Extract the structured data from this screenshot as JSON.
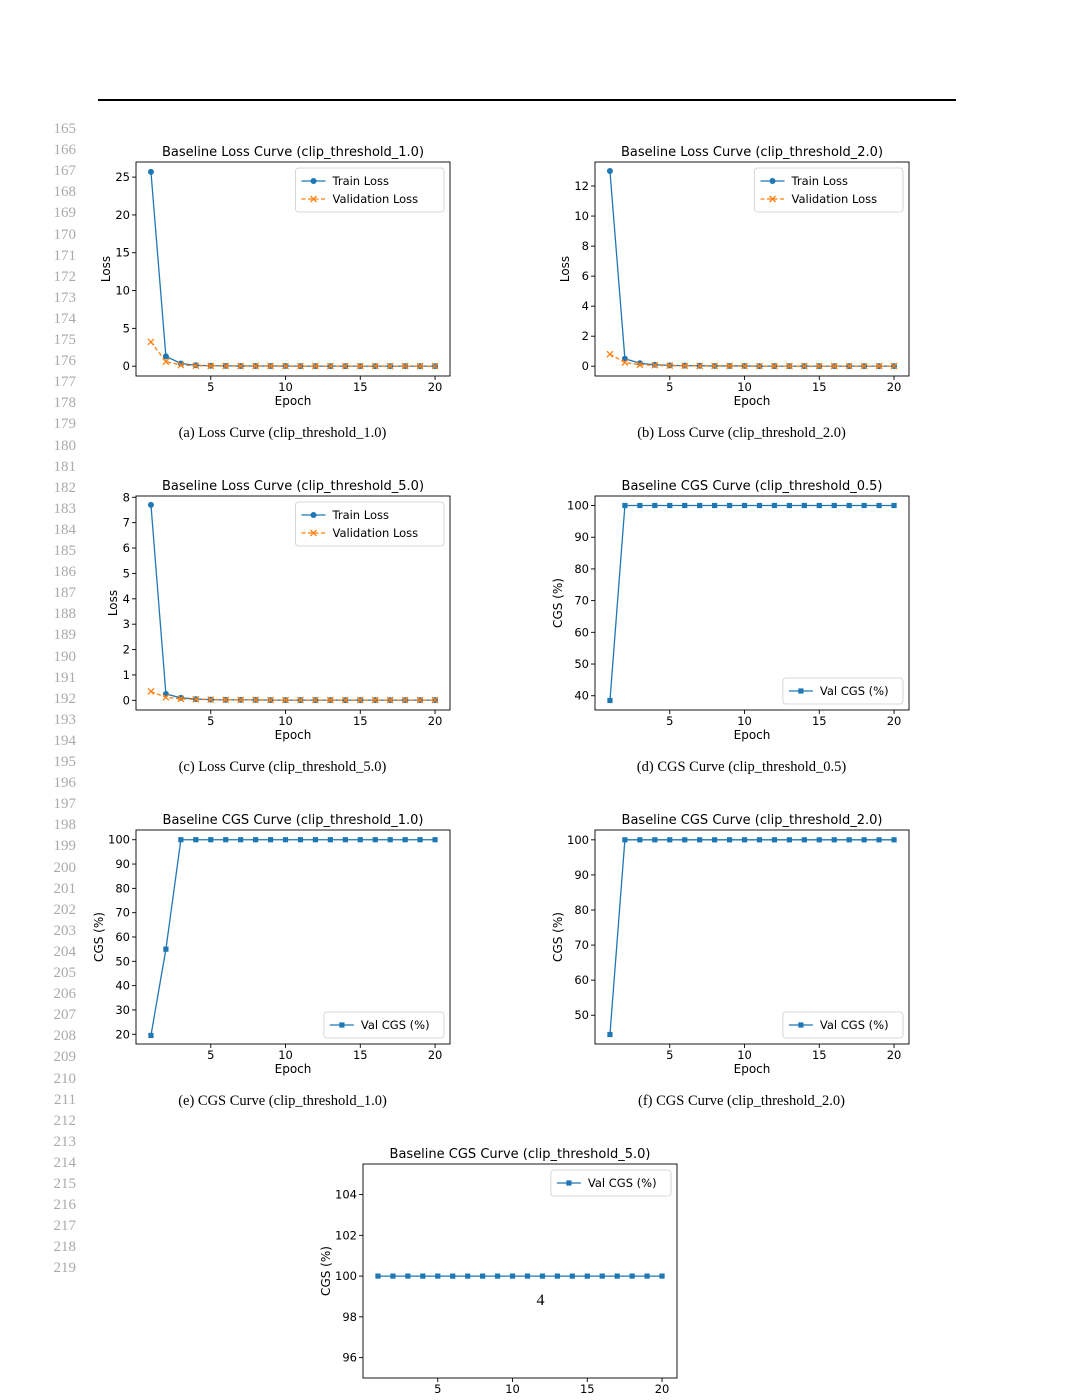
{
  "line_numbers": [
    "165",
    "166",
    "167",
    "168",
    "169",
    "170",
    "171",
    "172",
    "173",
    "174",
    "175",
    "176",
    "177",
    "178",
    "179",
    "180",
    "181",
    "182",
    "183",
    "184",
    "185",
    "186",
    "187",
    "188",
    "189",
    "190",
    "191",
    "192",
    "193",
    "194",
    "195",
    "196",
    "197",
    "198",
    "199",
    "200",
    "201",
    "202",
    "203",
    "204",
    "205",
    "206",
    "207",
    "208",
    "209",
    "210",
    "211",
    "212",
    "213",
    "214",
    "215",
    "216",
    "217",
    "218",
    "219"
  ],
  "page_number": "4",
  "chart_data": [
    {
      "type": "line",
      "title": "Baseline Loss Curve (clip_threshold_1.0)",
      "caption": "(a) Loss Curve (clip_threshold_1.0)",
      "xlabel": "Epoch",
      "ylabel": "Loss",
      "xlim": [
        0,
        21
      ],
      "ylim": [
        -1.3,
        27
      ],
      "xticks": [
        5,
        10,
        15,
        20
      ],
      "yticks": [
        0,
        5,
        10,
        15,
        20,
        25
      ],
      "legend": "top-right",
      "x": [
        1,
        2,
        3,
        4,
        5,
        6,
        7,
        8,
        9,
        10,
        11,
        12,
        13,
        14,
        15,
        16,
        17,
        18,
        19,
        20
      ],
      "series": [
        {
          "name": "Train Loss",
          "color": "#1f77b4",
          "marker": "circle",
          "style": "solid",
          "values": [
            25.7,
            1.3,
            0.35,
            0.12,
            0.06,
            0.04,
            0.03,
            0.02,
            0.02,
            0.02,
            0.01,
            0.01,
            0.01,
            0.01,
            0.01,
            0.01,
            0.01,
            0.01,
            0.01,
            0.01
          ]
        },
        {
          "name": "Validation Loss",
          "color": "#ff7f0e",
          "marker": "x",
          "style": "dashed",
          "values": [
            3.2,
            0.6,
            0.15,
            0.06,
            0.04,
            0.03,
            0.02,
            0.02,
            0.02,
            0.01,
            0.01,
            0.01,
            0.01,
            0.01,
            0.01,
            0.01,
            0.01,
            0.01,
            0.01,
            0.01
          ]
        }
      ]
    },
    {
      "type": "line",
      "title": "Baseline Loss Curve (clip_threshold_2.0)",
      "caption": "(b) Loss Curve (clip_threshold_2.0)",
      "xlabel": "Epoch",
      "ylabel": "Loss",
      "xlim": [
        0,
        21
      ],
      "ylim": [
        -0.65,
        13.6
      ],
      "xticks": [
        5,
        10,
        15,
        20
      ],
      "yticks": [
        0,
        2,
        4,
        6,
        8,
        10,
        12
      ],
      "legend": "top-right",
      "x": [
        1,
        2,
        3,
        4,
        5,
        6,
        7,
        8,
        9,
        10,
        11,
        12,
        13,
        14,
        15,
        16,
        17,
        18,
        19,
        20
      ],
      "series": [
        {
          "name": "Train Loss",
          "color": "#1f77b4",
          "marker": "circle",
          "style": "solid",
          "values": [
            13.0,
            0.5,
            0.2,
            0.1,
            0.06,
            0.04,
            0.03,
            0.02,
            0.02,
            0.02,
            0.01,
            0.01,
            0.01,
            0.01,
            0.01,
            0.01,
            0.01,
            0.01,
            0.01,
            0.01
          ]
        },
        {
          "name": "Validation Loss",
          "color": "#ff7f0e",
          "marker": "x",
          "style": "dashed",
          "values": [
            0.8,
            0.25,
            0.1,
            0.06,
            0.04,
            0.03,
            0.02,
            0.02,
            0.02,
            0.01,
            0.01,
            0.01,
            0.01,
            0.01,
            0.01,
            0.01,
            0.01,
            0.01,
            0.01,
            0.01
          ]
        }
      ]
    },
    {
      "type": "line",
      "title": "Baseline Loss Curve (clip_threshold_5.0)",
      "caption": "(c) Loss Curve (clip_threshold_5.0)",
      "xlabel": "Epoch",
      "ylabel": "Loss",
      "xlim": [
        0,
        21
      ],
      "ylim": [
        -0.38,
        8.05
      ],
      "xticks": [
        5,
        10,
        15,
        20
      ],
      "yticks": [
        0,
        1,
        2,
        3,
        4,
        5,
        6,
        7,
        8
      ],
      "legend": "top-right",
      "x": [
        1,
        2,
        3,
        4,
        5,
        6,
        7,
        8,
        9,
        10,
        11,
        12,
        13,
        14,
        15,
        16,
        17,
        18,
        19,
        20
      ],
      "series": [
        {
          "name": "Train Loss",
          "color": "#1f77b4",
          "marker": "circle",
          "style": "solid",
          "values": [
            7.7,
            0.25,
            0.1,
            0.05,
            0.03,
            0.02,
            0.02,
            0.02,
            0.01,
            0.01,
            0.01,
            0.01,
            0.01,
            0.01,
            0.01,
            0.01,
            0.01,
            0.01,
            0.01,
            0.01
          ]
        },
        {
          "name": "Validation Loss",
          "color": "#ff7f0e",
          "marker": "x",
          "style": "dashed",
          "values": [
            0.35,
            0.12,
            0.06,
            0.04,
            0.03,
            0.02,
            0.02,
            0.02,
            0.01,
            0.01,
            0.01,
            0.01,
            0.01,
            0.01,
            0.01,
            0.01,
            0.01,
            0.01,
            0.01,
            0.01
          ]
        }
      ]
    },
    {
      "type": "line",
      "title": "Baseline CGS Curve (clip_threshold_0.5)",
      "caption": "(d) CGS Curve (clip_threshold_0.5)",
      "xlabel": "Epoch",
      "ylabel": "CGS (%)",
      "xlim": [
        0,
        21
      ],
      "ylim": [
        35.5,
        103
      ],
      "xticks": [
        5,
        10,
        15,
        20
      ],
      "yticks": [
        40,
        50,
        60,
        70,
        80,
        90,
        100
      ],
      "legend": "bottom-right",
      "x": [
        1,
        2,
        3,
        4,
        5,
        6,
        7,
        8,
        9,
        10,
        11,
        12,
        13,
        14,
        15,
        16,
        17,
        18,
        19,
        20
      ],
      "series": [
        {
          "name": "Val CGS (%)",
          "color": "#1f77b4",
          "marker": "square",
          "style": "solid",
          "values": [
            38.5,
            100,
            100,
            100,
            100,
            100,
            100,
            100,
            100,
            100,
            100,
            100,
            100,
            100,
            100,
            100,
            100,
            100,
            100,
            100
          ]
        }
      ]
    },
    {
      "type": "line",
      "title": "Baseline CGS Curve (clip_threshold_1.0)",
      "caption": "(e) CGS Curve (clip_threshold_1.0)",
      "xlabel": "Epoch",
      "ylabel": "CGS (%)",
      "xlim": [
        0,
        21
      ],
      "ylim": [
        16,
        104
      ],
      "xticks": [
        5,
        10,
        15,
        20
      ],
      "yticks": [
        20,
        30,
        40,
        50,
        60,
        70,
        80,
        90,
        100
      ],
      "legend": "bottom-right",
      "x": [
        1,
        2,
        3,
        4,
        5,
        6,
        7,
        8,
        9,
        10,
        11,
        12,
        13,
        14,
        15,
        16,
        17,
        18,
        19,
        20
      ],
      "series": [
        {
          "name": "Val CGS (%)",
          "color": "#1f77b4",
          "marker": "square",
          "style": "solid",
          "values": [
            19.5,
            55,
            100,
            100,
            100,
            100,
            100,
            100,
            100,
            100,
            100,
            100,
            100,
            100,
            100,
            100,
            100,
            100,
            100,
            100
          ]
        }
      ]
    },
    {
      "type": "line",
      "title": "Baseline CGS Curve (clip_threshold_2.0)",
      "caption": "(f) CGS Curve (clip_threshold_2.0)",
      "xlabel": "Epoch",
      "ylabel": "CGS (%)",
      "xlim": [
        0,
        21
      ],
      "ylim": [
        41.8,
        102.8
      ],
      "xticks": [
        5,
        10,
        15,
        20
      ],
      "yticks": [
        50,
        60,
        70,
        80,
        90,
        100
      ],
      "legend": "bottom-right",
      "x": [
        1,
        2,
        3,
        4,
        5,
        6,
        7,
        8,
        9,
        10,
        11,
        12,
        13,
        14,
        15,
        16,
        17,
        18,
        19,
        20
      ],
      "series": [
        {
          "name": "Val CGS (%)",
          "color": "#1f77b4",
          "marker": "square",
          "style": "solid",
          "values": [
            44.5,
            100,
            100,
            100,
            100,
            100,
            100,
            100,
            100,
            100,
            100,
            100,
            100,
            100,
            100,
            100,
            100,
            100,
            100,
            100
          ]
        }
      ]
    },
    {
      "type": "line",
      "title": "Baseline CGS Curve (clip_threshold_5.0)",
      "caption": "",
      "xlabel": "",
      "ylabel": "CGS (%)",
      "xlim": [
        0,
        21
      ],
      "ylim": [
        95,
        105.5
      ],
      "xticks": [
        5,
        10,
        15,
        20
      ],
      "yticks": [
        96,
        98,
        100,
        102,
        104
      ],
      "legend": "top-right",
      "x": [
        1,
        2,
        3,
        4,
        5,
        6,
        7,
        8,
        9,
        10,
        11,
        12,
        13,
        14,
        15,
        16,
        17,
        18,
        19,
        20
      ],
      "series": [
        {
          "name": "Val CGS (%)",
          "color": "#1f77b4",
          "marker": "square",
          "style": "solid",
          "values": [
            100,
            100,
            100,
            100,
            100,
            100,
            100,
            100,
            100,
            100,
            100,
            100,
            100,
            100,
            100,
            100,
            100,
            100,
            100,
            100
          ]
        }
      ]
    }
  ]
}
